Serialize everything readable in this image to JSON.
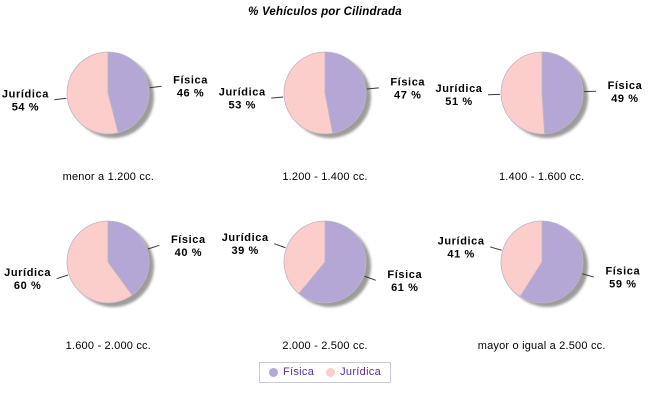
{
  "chart_data": {
    "type": "pie",
    "title": "% Vehículos por Cilindrada",
    "layout": "2 rows x 3 columns of pies",
    "value_suffix": " %",
    "start_angle": "12 o'clock, clockwise",
    "colors": {
      "Física": "#b4a7d5",
      "Jurídica": "#fbcdcb"
    },
    "shadow_color": "#9c9c9c",
    "legend": {
      "position": "bottom",
      "items": [
        {
          "label": "Física",
          "color": "#b4a7d5"
        },
        {
          "label": "Jurídica",
          "color": "#fbcdcb"
        }
      ]
    },
    "pies": [
      {
        "category": "menor a 1.200 cc.",
        "slices": [
          {
            "label": "Física",
            "value": 46
          },
          {
            "label": "Jurídica",
            "value": 54
          }
        ]
      },
      {
        "category": "1.200 - 1.400 cc.",
        "slices": [
          {
            "label": "Física",
            "value": 47
          },
          {
            "label": "Jurídica",
            "value": 53
          }
        ]
      },
      {
        "category": "1.400 - 1.600 cc.",
        "slices": [
          {
            "label": "Física",
            "value": 49
          },
          {
            "label": "Jurídica",
            "value": 51
          }
        ]
      },
      {
        "category": "1.600 - 2.000 cc.",
        "slices": [
          {
            "label": "Física",
            "value": 40
          },
          {
            "label": "Jurídica",
            "value": 60
          }
        ]
      },
      {
        "category": "2.000 - 2.500 cc.",
        "slices": [
          {
            "label": "Física",
            "value": 61
          },
          {
            "label": "Jurídica",
            "value": 39
          }
        ]
      },
      {
        "category": "mayor o igual a 2.500 cc.",
        "slices": [
          {
            "label": "Física",
            "value": 59
          },
          {
            "label": "Jurídica",
            "value": 41
          }
        ]
      }
    ]
  }
}
